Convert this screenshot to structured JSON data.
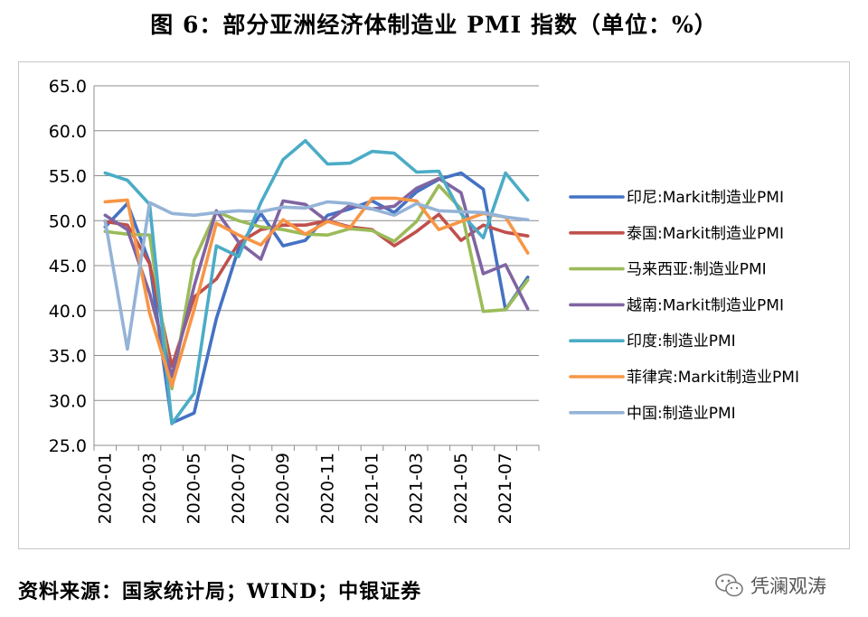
{
  "title": "图 6：部分亚洲经济体制造业 PMI 指数（单位：%）",
  "source": "资料来源：国家统计局；WIND；中银证券",
  "watermark": "凭澜观涛",
  "chart_data": {
    "type": "line",
    "title": "图 6：部分亚洲经济体制造业 PMI 指数（单位：%）",
    "xlabel": "",
    "ylabel": "",
    "ylim": [
      25,
      65
    ],
    "yticks": [
      "65.0",
      "60.0",
      "55.0",
      "50.0",
      "45.0",
      "40.0",
      "35.0",
      "30.0",
      "25.0"
    ],
    "x_tick_labels": [
      "2020-01",
      "2020-03",
      "2020-05",
      "2020-07",
      "2020-09",
      "2020-11",
      "2021-01",
      "2021-03",
      "2021-05",
      "2021-07"
    ],
    "x": [
      "2020-01",
      "2020-02",
      "2020-03",
      "2020-04",
      "2020-05",
      "2020-06",
      "2020-07",
      "2020-08",
      "2020-09",
      "2020-10",
      "2020-11",
      "2020-12",
      "2021-01",
      "2021-02",
      "2021-03",
      "2021-04",
      "2021-05",
      "2021-06",
      "2021-07",
      "2021-08"
    ],
    "grid": true,
    "legend_position": "right",
    "series": [
      {
        "name": "印尼:Markit制造业PMI",
        "color": "#4472C4",
        "values": [
          49.3,
          51.9,
          45.3,
          27.5,
          28.6,
          39.1,
          46.9,
          50.8,
          47.2,
          47.8,
          50.6,
          51.3,
          52.2,
          50.9,
          53.2,
          54.6,
          55.3,
          53.5,
          40.1,
          43.7
        ]
      },
      {
        "name": "泰国:Markit制造业PMI",
        "color": "#C0504D",
        "values": [
          49.9,
          49.5,
          45.2,
          33.8,
          41.5,
          43.5,
          47.5,
          49.0,
          49.5,
          49.5,
          50.0,
          49.3,
          49.0,
          47.2,
          48.8,
          50.7,
          47.8,
          49.5,
          48.7,
          48.3
        ]
      },
      {
        "name": "马来西亚:制造业PMI",
        "color": "#9BBB59",
        "values": [
          48.8,
          48.5,
          48.4,
          31.3,
          45.6,
          51.0,
          50.0,
          49.3,
          49.0,
          48.5,
          48.4,
          49.1,
          48.9,
          47.7,
          49.9,
          53.9,
          51.3,
          39.9,
          40.1,
          43.4
        ]
      },
      {
        "name": "越南:Markit制造业PMI",
        "color": "#8064A2",
        "values": [
          50.6,
          49.0,
          41.9,
          32.7,
          42.7,
          51.1,
          47.6,
          45.7,
          52.2,
          51.8,
          49.9,
          51.7,
          51.3,
          51.6,
          53.6,
          54.7,
          53.1,
          44.1,
          45.1,
          40.2
        ]
      },
      {
        "name": "印度:制造业PMI",
        "color": "#4BACC6",
        "values": [
          55.3,
          54.5,
          51.8,
          27.4,
          30.8,
          47.2,
          46.0,
          52.0,
          56.8,
          58.9,
          56.3,
          56.4,
          57.7,
          57.5,
          55.4,
          55.5,
          50.8,
          48.1,
          55.3,
          52.3
        ]
      },
      {
        "name": "菲律宾:Markit制造业PMI",
        "color": "#F79646",
        "values": [
          52.1,
          52.3,
          39.7,
          31.6,
          40.1,
          49.7,
          48.4,
          47.3,
          50.1,
          48.5,
          49.9,
          49.2,
          52.5,
          52.5,
          52.2,
          49.0,
          49.9,
          50.8,
          50.4,
          46.4
        ]
      },
      {
        "name": "中国:制造业PMI",
        "color": "#95B3D7",
        "values": [
          50.0,
          35.7,
          52.0,
          50.8,
          50.6,
          50.9,
          51.1,
          51.0,
          51.5,
          51.4,
          52.1,
          51.9,
          51.3,
          50.6,
          51.9,
          51.1,
          51.0,
          50.9,
          50.4,
          50.1
        ]
      }
    ]
  }
}
